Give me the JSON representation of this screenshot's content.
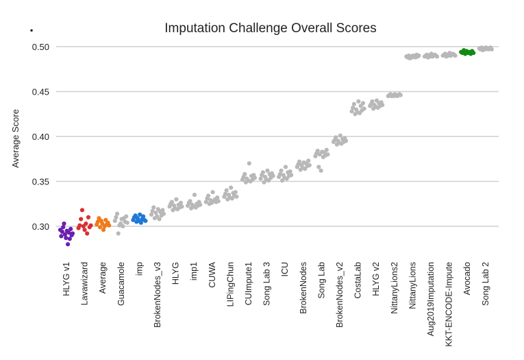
{
  "chart_data": {
    "type": "scatter",
    "title": "Imputation  Challenge Overall Scores",
    "corner_marker": "▪",
    "ylabel": "Average Score",
    "xlabel": "",
    "ylim": [
      0.27,
      0.5
    ],
    "yticks": [
      0.3,
      0.35,
      0.4,
      0.45,
      0.5
    ],
    "ytick_labels": [
      "0.30",
      "0.35",
      "0.40",
      "0.45",
      "0.50"
    ],
    "grid": true,
    "legend": "none",
    "colors": {
      "HLYG v1": "#6a1fb0",
      "Lavawizard": "#d93030",
      "Average": "#f07a1a",
      "imp": "#1f78d6",
      "Avocado": "#128a12",
      "default": "#b8b8b8"
    },
    "categories": [
      {
        "name": "HLYG v1",
        "values": [
          0.296,
          0.289,
          0.294,
          0.299,
          0.303,
          0.291,
          0.287,
          0.295,
          0.28,
          0.293,
          0.286,
          0.297,
          0.29,
          0.292
        ]
      },
      {
        "name": "Lavawizard",
        "values": [
          0.298,
          0.301,
          0.308,
          0.318,
          0.3,
          0.296,
          0.303,
          0.292,
          0.31,
          0.299,
          0.301
        ]
      },
      {
        "name": "Average",
        "values": [
          0.302,
          0.305,
          0.309,
          0.299,
          0.306,
          0.303,
          0.296,
          0.3,
          0.307,
          0.302,
          0.304,
          0.301
        ]
      },
      {
        "name": "Guacamole",
        "values": [
          0.306,
          0.31,
          0.314,
          0.292,
          0.301,
          0.303,
          0.308,
          0.3,
          0.309,
          0.305,
          0.311,
          0.304
        ]
      },
      {
        "name": "imp",
        "values": [
          0.307,
          0.31,
          0.312,
          0.305,
          0.309,
          0.306,
          0.313,
          0.304,
          0.308,
          0.311,
          0.307,
          0.306
        ]
      },
      {
        "name": "BrokenNodes_v3",
        "values": [
          0.313,
          0.317,
          0.321,
          0.309,
          0.315,
          0.311,
          0.319,
          0.308,
          0.316,
          0.312,
          0.318,
          0.314
        ]
      },
      {
        "name": "HLYG",
        "values": [
          0.322,
          0.325,
          0.327,
          0.318,
          0.323,
          0.32,
          0.33,
          0.319,
          0.324,
          0.321,
          0.326,
          0.322
        ]
      },
      {
        "name": "imp1",
        "values": [
          0.323,
          0.326,
          0.328,
          0.32,
          0.324,
          0.322,
          0.335,
          0.321,
          0.325,
          0.323,
          0.327,
          0.324
        ]
      },
      {
        "name": "CUWA",
        "values": [
          0.327,
          0.331,
          0.334,
          0.325,
          0.329,
          0.326,
          0.338,
          0.328,
          0.33,
          0.327,
          0.332,
          0.328
        ]
      },
      {
        "name": "LIPingChun",
        "values": [
          0.333,
          0.336,
          0.34,
          0.33,
          0.335,
          0.332,
          0.343,
          0.331,
          0.337,
          0.334,
          0.338,
          0.333
        ]
      },
      {
        "name": "CUImpute1",
        "values": [
          0.352,
          0.355,
          0.358,
          0.349,
          0.353,
          0.351,
          0.37,
          0.35,
          0.356,
          0.352,
          0.357,
          0.354
        ]
      },
      {
        "name": "Song Lab 3",
        "values": [
          0.353,
          0.357,
          0.36,
          0.349,
          0.355,
          0.352,
          0.362,
          0.351,
          0.358,
          0.354,
          0.359,
          0.356
        ]
      },
      {
        "name": "ICU",
        "values": [
          0.355,
          0.358,
          0.362,
          0.351,
          0.357,
          0.354,
          0.366,
          0.353,
          0.36,
          0.356,
          0.361,
          0.357
        ]
      },
      {
        "name": "BrokenNodes",
        "values": [
          0.366,
          0.369,
          0.372,
          0.363,
          0.368,
          0.365,
          0.371,
          0.364,
          0.37,
          0.367,
          0.373,
          0.368
        ]
      },
      {
        "name": "Song Lab",
        "values": [
          0.378,
          0.381,
          0.384,
          0.366,
          0.38,
          0.362,
          0.383,
          0.377,
          0.382,
          0.379,
          0.385,
          0.38
        ]
      },
      {
        "name": "BrokenNodes_v2",
        "values": [
          0.394,
          0.396,
          0.399,
          0.391,
          0.395,
          0.393,
          0.401,
          0.392,
          0.397,
          0.394,
          0.398,
          0.395
        ]
      },
      {
        "name": "CostaLab",
        "values": [
          0.428,
          0.432,
          0.436,
          0.425,
          0.43,
          0.427,
          0.439,
          0.426,
          0.434,
          0.429,
          0.437,
          0.431
        ]
      },
      {
        "name": "HLYG v2",
        "values": [
          0.434,
          0.436,
          0.439,
          0.431,
          0.435,
          0.433,
          0.44,
          0.432,
          0.437,
          0.434,
          0.438,
          0.435
        ]
      },
      {
        "name": "NittanyLions2",
        "values": [
          0.445,
          0.446,
          0.447,
          0.445,
          0.446,
          0.445,
          0.447,
          0.446,
          0.445,
          0.446,
          0.447,
          0.446
        ]
      },
      {
        "name": "NittanyLions",
        "values": [
          0.489,
          0.488,
          0.49,
          0.487,
          0.489,
          0.488,
          0.49,
          0.489,
          0.488,
          0.491,
          0.489,
          0.49
        ]
      },
      {
        "name": "Aug2019Imputation",
        "values": [
          0.489,
          0.49,
          0.491,
          0.488,
          0.49,
          0.489,
          0.492,
          0.489,
          0.49,
          0.491,
          0.49,
          0.489
        ]
      },
      {
        "name": "KKT-ENCODE-Impute",
        "values": [
          0.49,
          0.491,
          0.492,
          0.489,
          0.491,
          0.49,
          0.493,
          0.49,
          0.491,
          0.492,
          0.491,
          0.49
        ]
      },
      {
        "name": "Avocado",
        "values": [
          0.494,
          0.493,
          0.496,
          0.492,
          0.495,
          0.493,
          0.494,
          0.492,
          0.495,
          0.493
        ]
      },
      {
        "name": "Song Lab 2",
        "values": [
          0.498,
          0.497,
          0.499,
          0.496,
          0.498,
          0.497,
          0.499,
          0.498,
          0.497,
          0.498,
          0.499,
          0.497
        ]
      }
    ]
  }
}
